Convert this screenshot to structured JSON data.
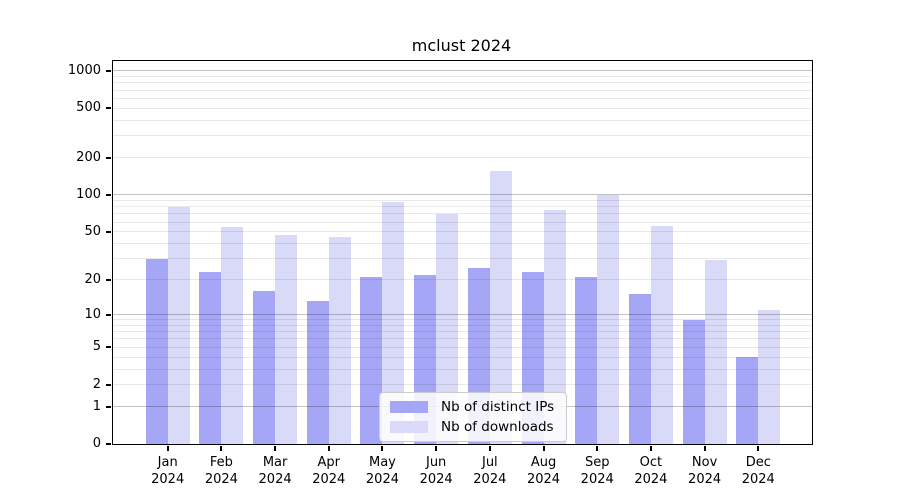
{
  "chart_data": {
    "type": "bar",
    "title": "mclust 2024",
    "categories": [
      "Jan",
      "Feb",
      "Mar",
      "Apr",
      "May",
      "Jun",
      "Jul",
      "Aug",
      "Sep",
      "Oct",
      "Nov",
      "Dec"
    ],
    "category_year": "2024",
    "series": [
      {
        "name": "Nb of distinct IPs",
        "key": "distinct-ips",
        "color": "#a6a6f7",
        "values": [
          30,
          23,
          16,
          13,
          21,
          22,
          25,
          23,
          21,
          15,
          9,
          4
        ]
      },
      {
        "name": "Nb of downloads",
        "key": "downloads",
        "color": "#d9d9f8",
        "values": [
          80,
          55,
          47,
          45,
          87,
          70,
          157,
          75,
          100,
          56,
          29,
          11
        ]
      }
    ],
    "y_scale": "log1p",
    "y_ticks": [
      1000,
      500,
      200,
      100,
      50,
      20,
      10,
      5,
      2,
      1,
      0
    ],
    "y_major_gridlines": [
      1,
      10,
      100,
      1000
    ],
    "y_range": [
      0,
      1180
    ],
    "legend_position": "lower center",
    "grid": true
  },
  "colors": {
    "background": "#ffffff",
    "axis": "#000000",
    "major_grid": "#c3c3c3",
    "minor_grid": "#e9e9e9",
    "bar_distinct_ips": "#a6a6f7",
    "bar_downloads": "#d9d9f8",
    "legend_border": "#cccccc"
  }
}
